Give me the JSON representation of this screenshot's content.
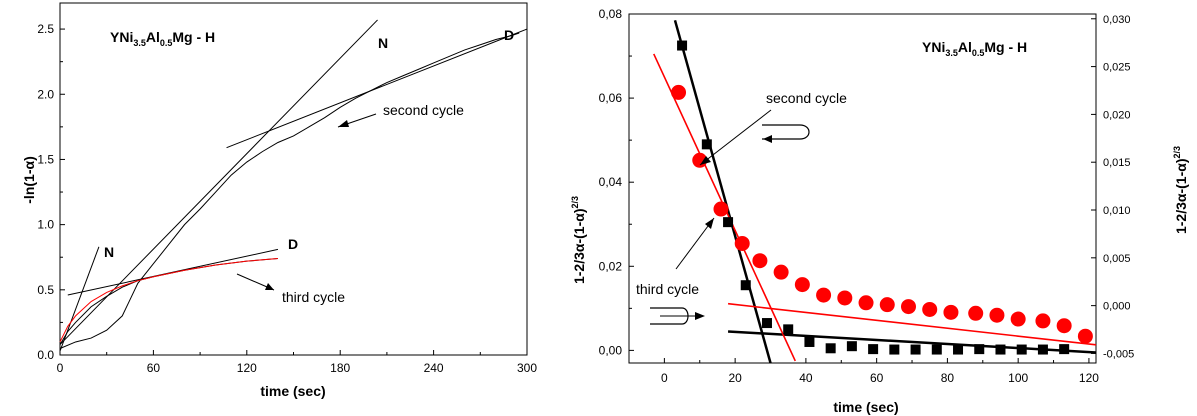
{
  "chart_data": [
    {
      "type": "line",
      "xlabel": "time (sec)",
      "ylabel": "-ln(1-α)",
      "xlim": [
        0,
        300
      ],
      "ylim": [
        0,
        2.7
      ],
      "x_ticks": [
        "0",
        "60",
        "120",
        "180",
        "240",
        "300"
      ],
      "y_ticks": [
        "0.0",
        "0.5",
        "1.0",
        "1.5",
        "2.0",
        "2.5"
      ],
      "formula": {
        "p1": "YNi",
        "s1": "3.5",
        "p2": "Al",
        "s2": "0.5",
        "p3": "Mg - H"
      },
      "annotations": [
        "N",
        "D",
        "N",
        "D",
        "second cycle",
        "third cycle"
      ],
      "series": [
        {
          "name": "second cycle",
          "color": "#000000",
          "x": [
            0,
            10,
            20,
            30,
            40,
            50,
            60,
            70,
            80,
            90,
            100,
            110,
            120,
            130,
            140,
            150,
            160,
            170,
            180,
            190,
            200,
            210,
            220,
            230,
            240,
            250,
            260,
            270,
            280,
            290,
            295
          ],
          "y": [
            0.05,
            0.1,
            0.13,
            0.19,
            0.3,
            0.55,
            0.7,
            0.85,
            1.0,
            1.12,
            1.25,
            1.38,
            1.48,
            1.56,
            1.63,
            1.68,
            1.75,
            1.82,
            1.9,
            1.97,
            2.03,
            2.09,
            2.14,
            2.19,
            2.24,
            2.29,
            2.34,
            2.38,
            2.42,
            2.45,
            2.47
          ]
        },
        {
          "name": "third cycle",
          "color": "#000000",
          "x": [
            0,
            5,
            10,
            20,
            30,
            40,
            50,
            60,
            80,
            100,
            120,
            140
          ],
          "y": [
            0.08,
            0.18,
            0.25,
            0.37,
            0.45,
            0.52,
            0.57,
            0.6,
            0.65,
            0.69,
            0.72,
            0.74
          ]
        },
        {
          "name": "third cycle (fit)",
          "color": "#ff0000",
          "x": [
            0,
            5,
            10,
            20,
            30,
            40,
            50,
            60,
            80,
            100,
            120,
            140
          ],
          "y": [
            0.1,
            0.22,
            0.3,
            0.41,
            0.48,
            0.53,
            0.57,
            0.6,
            0.65,
            0.69,
            0.72,
            0.74
          ]
        }
      ],
      "fit_lines": [
        {
          "label": "N",
          "x": [
            0,
            204
          ],
          "y": [
            0.08,
            2.57
          ]
        },
        {
          "label": "D",
          "x": [
            107,
            300
          ],
          "y": [
            1.59,
            2.5
          ]
        },
        {
          "label": "N",
          "x": [
            0,
            25
          ],
          "y": [
            0.03,
            0.83
          ]
        },
        {
          "label": "D",
          "x": [
            5,
            140
          ],
          "y": [
            0.46,
            0.81
          ]
        }
      ]
    },
    {
      "type": "scatter",
      "xlabel": "time (sec)",
      "ylabel": "1-2/3α-(1-α)",
      "ylabel_sup": "2/3",
      "right_ylabel": "1-2/3α-(1-α)",
      "right_ylabel_sup": "2/3",
      "xlim": [
        -10,
        122
      ],
      "ylim": [
        -0.003,
        0.08
      ],
      "right_ylim": [
        -0.006,
        0.0305
      ],
      "x_ticks": [
        "0",
        "20",
        "40",
        "60",
        "80",
        "100",
        "120"
      ],
      "y_ticks": [
        "0,00",
        "0,02",
        "0,04",
        "0,06",
        "0,08"
      ],
      "right_ticks": [
        "-0,005",
        "0,000",
        "0,005",
        "0,010",
        "0,015",
        "0,020",
        "0,025",
        "0,030"
      ],
      "formula": {
        "p1": "YNi",
        "s1": "3.5",
        "p2": "Al",
        "s2": "0.5",
        "p3": "Mg - H"
      },
      "annotations": [
        "second cycle",
        "third cycle"
      ],
      "series": [
        {
          "name": "second cycle",
          "marker": "square",
          "color": "#000000",
          "axis": "left",
          "x": [
            5,
            12,
            18,
            23,
            29,
            35,
            41,
            47,
            53,
            59,
            65,
            71,
            77,
            83,
            89,
            95,
            101,
            107,
            113
          ],
          "y": [
            0.0725,
            0.049,
            0.0305,
            0.0155,
            0.0065,
            0.005,
            0.002,
            0.0005,
            0.001,
            0.0003,
            0.0002,
            0.0002,
            0.0002,
            0.0002,
            0.0003,
            0.0002,
            0.0002,
            0.0002,
            0.0003
          ]
        },
        {
          "name": "third cycle",
          "marker": "circle",
          "color": "#ff0000",
          "axis": "right",
          "x": [
            4,
            10,
            16,
            22,
            27,
            33,
            39,
            45,
            51,
            57,
            63,
            69,
            75,
            81,
            88,
            94,
            100,
            107,
            113,
            119
          ],
          "y": [
            0.0223,
            0.0152,
            0.0101,
            0.0065,
            0.0047,
            0.0035,
            0.0022,
            0.0011,
            0.0008,
            0.0003,
            0.0001,
            -0.0001,
            -0.0004,
            -0.0007,
            -0.0008,
            -0.001,
            -0.0014,
            -0.0016,
            -0.0021,
            -0.0032
          ]
        }
      ],
      "fit_lines": [
        {
          "series": "second cycle",
          "axis": "left",
          "x": [
            3,
            30
          ],
          "y": [
            0.0785,
            -0.003
          ]
        },
        {
          "series": "second cycle",
          "axis": "left",
          "x": [
            18,
            122
          ],
          "y": [
            0.0045,
            -0.0005
          ]
        },
        {
          "series": "third cycle",
          "axis": "left",
          "x": [
            -3,
            37
          ],
          "y": [
            0.0705,
            -0.0025
          ]
        },
        {
          "series": "third cycle",
          "axis": "right",
          "x": [
            18,
            122
          ],
          "y": [
            0.0002,
            -0.0041
          ]
        }
      ]
    }
  ]
}
